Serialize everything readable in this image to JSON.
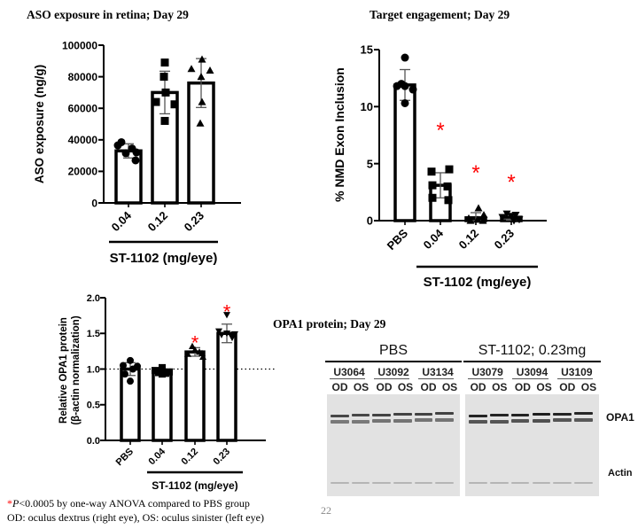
{
  "titles": {
    "aso": "ASO exposure in retina; Day 29",
    "target": "Target engagement; Day 29",
    "opa1": "OPA1 protein; Day 29"
  },
  "chart_data": [
    {
      "type": "bar",
      "title": "ASO exposure in retina; Day 29",
      "ylabel": "ASO exposure (ng/g)",
      "xlabel": "ST-1102 (mg/eye)",
      "ylim": [
        0,
        100000
      ],
      "yticks": [
        0,
        20000,
        40000,
        60000,
        80000,
        100000
      ],
      "categories": [
        "0.04",
        "0.12",
        "0.23"
      ],
      "values": [
        33000,
        70000,
        76000
      ],
      "errors": [
        4500,
        13500,
        15500
      ],
      "markers": [
        "circle",
        "square",
        "triangle"
      ],
      "points": [
        [
          38500,
          36500,
          34500,
          32000,
          31500,
          27000
        ],
        [
          89000,
          80000,
          70000,
          64000,
          62500,
          52000
        ],
        [
          91000,
          85000,
          84000,
          80000,
          64000,
          50500
        ]
      ],
      "significance": [
        false,
        false,
        false
      ]
    },
    {
      "type": "bar",
      "title": "Target engagement; Day 29",
      "ylabel": "% NMD  Exon Inclusion",
      "xlabel": "ST-1102 (mg/eye)",
      "ylim": [
        0,
        15
      ],
      "yticks": [
        0,
        5,
        10,
        15
      ],
      "categories": [
        "PBS",
        "0.04",
        "0.12",
        "0.23"
      ],
      "values": [
        11.9,
        3.1,
        0.25,
        0.3
      ],
      "errors": [
        1.35,
        1.1,
        0.45,
        0.25
      ],
      "markers": [
        "circle",
        "square",
        "triangle",
        "triangle-down"
      ],
      "points": [
        [
          14.3,
          12.0,
          11.8,
          11.8,
          11.5,
          10.3
        ],
        [
          4.5,
          4.3,
          3.1,
          3.0,
          2.0,
          1.8
        ],
        [
          1.1,
          0.5,
          0.2,
          0.1,
          0.0,
          0.0
        ],
        [
          0.6,
          0.5,
          0.4,
          0.3,
          0.1,
          0.0
        ]
      ],
      "significance": [
        false,
        true,
        true,
        true
      ]
    },
    {
      "type": "bar",
      "title": "",
      "ylabel": "Relative OPA1 protein",
      "ylabel2": "(β-actin normalization)",
      "xlabel": "ST-1102 (mg/eye)",
      "ylim": [
        0,
        2.0
      ],
      "yticks": [
        "0.0",
        "0.5",
        "1.0",
        "1.5",
        "2.0"
      ],
      "categories": [
        "PBS",
        "0.04",
        "0.12",
        "0.23"
      ],
      "values": [
        1.0,
        0.96,
        1.24,
        1.5
      ],
      "errors": [
        0.09,
        0.04,
        0.06,
        0.13
      ],
      "reference_line": 1.0,
      "markers": [
        "circle",
        "square",
        "triangle",
        "triangle-down"
      ],
      "points": [
        [
          1.12,
          1.05,
          1.04,
          1.0,
          0.93,
          0.83
        ],
        [
          1.02,
          0.98,
          0.96,
          0.95,
          0.94,
          0.93
        ],
        [
          1.32,
          1.27,
          1.24,
          1.22,
          1.21,
          1.17
        ],
        [
          1.76,
          1.53,
          1.5,
          1.49,
          1.48,
          1.44
        ]
      ],
      "significance": [
        false,
        false,
        true,
        true
      ]
    }
  ],
  "blot": {
    "groups": [
      {
        "label": "PBS",
        "samples": [
          "U3064",
          "U3092",
          "U3134"
        ]
      },
      {
        "label": "ST-1102; 0.23mg",
        "samples": [
          "U3079",
          "U3094",
          "U3109"
        ]
      }
    ],
    "eyes": [
      "OD",
      "OS"
    ],
    "bands": [
      "OPA1",
      "Actin"
    ],
    "opa1_intensity": [
      0.55,
      0.55,
      0.6,
      0.6,
      0.6,
      0.6,
      0.95,
      0.95,
      0.95,
      1.0,
      0.95,
      0.9
    ]
  },
  "footnotes": {
    "asterisk": "*",
    "p_italic": "P",
    "line1_rest": "<0.0005 by one-way ANOVA compared to PBS group",
    "line2": "OD: oculus dextrus (right eye), OS: oculus sinister (left eye)"
  },
  "page_number": "22",
  "colors": {
    "significance": "#ff0000",
    "bar_stroke": "#000000",
    "blot_bg": "#e2e2e2"
  }
}
